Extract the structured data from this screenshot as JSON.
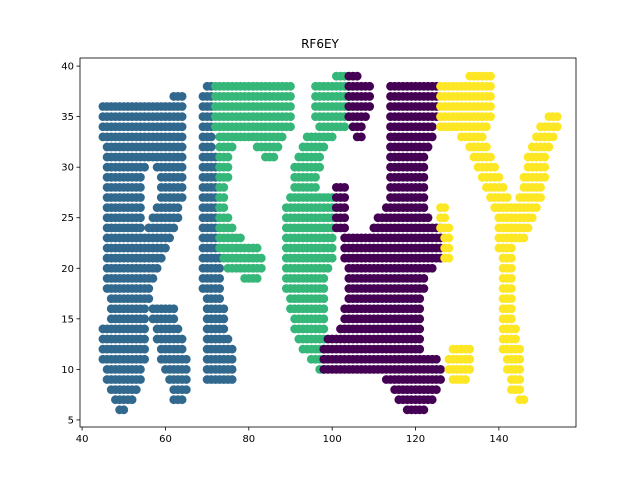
{
  "chart_data": {
    "type": "scatter",
    "title": "RF6EY",
    "xlabel": "",
    "ylabel": "",
    "xlim": [
      39.5,
      158.5
    ],
    "ylim": [
      4.3,
      40.8
    ],
    "xticks": [
      40,
      60,
      80,
      100,
      120,
      140
    ],
    "yticks": [
      5,
      10,
      15,
      20,
      25,
      30,
      35,
      40
    ],
    "grid": false,
    "legend": "none",
    "colors": {
      "blue": "#31688e",
      "green": "#35b779",
      "purple": "#440154",
      "yellow": "#fde725"
    },
    "series": [
      {
        "color": "#31688e",
        "segments": [
          [
            36,
            45,
            64
          ],
          [
            35,
            45,
            64
          ],
          [
            34,
            45,
            64
          ],
          [
            33,
            45,
            64
          ],
          [
            32,
            46,
            64
          ],
          [
            31,
            46,
            64
          ],
          [
            30,
            46,
            55
          ],
          [
            30,
            58,
            64
          ],
          [
            29,
            46,
            54
          ],
          [
            29,
            59,
            64
          ],
          [
            28,
            46,
            54
          ],
          [
            28,
            59,
            64
          ],
          [
            27,
            46,
            54
          ],
          [
            27,
            59,
            64
          ],
          [
            26,
            46,
            54
          ],
          [
            26,
            58,
            63
          ],
          [
            25,
            46,
            54
          ],
          [
            25,
            57,
            63
          ],
          [
            24,
            46,
            54
          ],
          [
            24,
            56,
            62
          ],
          [
            23,
            46,
            61
          ],
          [
            22,
            46,
            60
          ],
          [
            21,
            46,
            59
          ],
          [
            20,
            46,
            58
          ],
          [
            19,
            46,
            57
          ],
          [
            18,
            46,
            56
          ],
          [
            17,
            47,
            56
          ],
          [
            16,
            47,
            55
          ],
          [
            16,
            57,
            62
          ],
          [
            15,
            47,
            55
          ],
          [
            15,
            57,
            62
          ],
          [
            14,
            45,
            55
          ],
          [
            14,
            58,
            63
          ],
          [
            13,
            45,
            55
          ],
          [
            13,
            58,
            64
          ],
          [
            12,
            45,
            55
          ],
          [
            12,
            59,
            64
          ],
          [
            11,
            45,
            55
          ],
          [
            11,
            59,
            65
          ],
          [
            10,
            46,
            54
          ],
          [
            10,
            60,
            65
          ],
          [
            9,
            46,
            54
          ],
          [
            9,
            61,
            65
          ],
          [
            8,
            47,
            53
          ],
          [
            8,
            62,
            65
          ],
          [
            7,
            48,
            52
          ],
          [
            7,
            62,
            64
          ],
          [
            6,
            49,
            50
          ],
          [
            37,
            62,
            64
          ],
          [
            38,
            70,
            71
          ],
          [
            37,
            69,
            71
          ],
          [
            36,
            69,
            71
          ],
          [
            35,
            69,
            71
          ],
          [
            34,
            69,
            71
          ],
          [
            33,
            69,
            71
          ],
          [
            32,
            69,
            71
          ],
          [
            31,
            69,
            72
          ],
          [
            30,
            69,
            72
          ],
          [
            29,
            69,
            72
          ],
          [
            28,
            69,
            72
          ],
          [
            27,
            69,
            72
          ],
          [
            26,
            69,
            72
          ],
          [
            25,
            69,
            72
          ],
          [
            24,
            69,
            72
          ],
          [
            23,
            69,
            72
          ],
          [
            22,
            69,
            72
          ],
          [
            21,
            69,
            73
          ],
          [
            20,
            69,
            73
          ],
          [
            19,
            69,
            73
          ],
          [
            18,
            69,
            73
          ],
          [
            17,
            70,
            73
          ],
          [
            16,
            70,
            74
          ],
          [
            15,
            70,
            74
          ],
          [
            14,
            70,
            74
          ],
          [
            13,
            70,
            75
          ],
          [
            12,
            70,
            76
          ],
          [
            11,
            70,
            76
          ],
          [
            10,
            70,
            76
          ],
          [
            9,
            70,
            76
          ]
        ]
      },
      {
        "color": "#35b779",
        "segments": [
          [
            38,
            72,
            90
          ],
          [
            37,
            72,
            90
          ],
          [
            36,
            72,
            90
          ],
          [
            35,
            72,
            90
          ],
          [
            34,
            72,
            90
          ],
          [
            33,
            73,
            88
          ],
          [
            32,
            73,
            76
          ],
          [
            32,
            82,
            87
          ],
          [
            31,
            73,
            75
          ],
          [
            31,
            84,
            86
          ],
          [
            30,
            73,
            75
          ],
          [
            29,
            73,
            75
          ],
          [
            28,
            73,
            74
          ],
          [
            27,
            73,
            74
          ],
          [
            26,
            73,
            74
          ],
          [
            25,
            73,
            75
          ],
          [
            24,
            73,
            76
          ],
          [
            23,
            73,
            78
          ],
          [
            22,
            73,
            82
          ],
          [
            21,
            74,
            83
          ],
          [
            20,
            75,
            83
          ],
          [
            19,
            79,
            82
          ],
          [
            39,
            101,
            103
          ],
          [
            38,
            96,
            104
          ],
          [
            37,
            96,
            104
          ],
          [
            36,
            96,
            104
          ],
          [
            35,
            96,
            104
          ],
          [
            34,
            97,
            103
          ],
          [
            33,
            94,
            100
          ],
          [
            32,
            93,
            98
          ],
          [
            31,
            92,
            97
          ],
          [
            30,
            91,
            97
          ],
          [
            29,
            91,
            96
          ],
          [
            28,
            91,
            96
          ],
          [
            27,
            90,
            100
          ],
          [
            26,
            89,
            100
          ],
          [
            25,
            89,
            100
          ],
          [
            24,
            89,
            100
          ],
          [
            23,
            89,
            100
          ],
          [
            22,
            89,
            100
          ],
          [
            21,
            89,
            100
          ],
          [
            20,
            89,
            99
          ],
          [
            19,
            89,
            98
          ],
          [
            18,
            89,
            98
          ],
          [
            17,
            90,
            98
          ],
          [
            16,
            90,
            98
          ],
          [
            15,
            91,
            98
          ],
          [
            14,
            91,
            98
          ],
          [
            13,
            92,
            98
          ],
          [
            12,
            93,
            98
          ],
          [
            11,
            95,
            98
          ],
          [
            10,
            97,
            98
          ]
        ]
      },
      {
        "color": "#440154",
        "segments": [
          [
            39,
            104,
            106
          ],
          [
            38,
            104,
            109
          ],
          [
            37,
            104,
            109
          ],
          [
            36,
            104,
            109
          ],
          [
            35,
            104,
            108
          ],
          [
            34,
            105,
            107
          ],
          [
            33,
            106,
            107
          ],
          [
            38,
            114,
            125
          ],
          [
            37,
            114,
            125
          ],
          [
            36,
            114,
            125
          ],
          [
            35,
            114,
            125
          ],
          [
            34,
            114,
            124
          ],
          [
            33,
            114,
            124
          ],
          [
            32,
            114,
            123
          ],
          [
            31,
            114,
            122
          ],
          [
            30,
            114,
            122
          ],
          [
            29,
            114,
            122
          ],
          [
            28,
            114,
            122
          ],
          [
            27,
            114,
            122
          ],
          [
            26,
            113,
            122
          ],
          [
            25,
            111,
            123
          ],
          [
            24,
            110,
            126
          ],
          [
            23,
            103,
            126
          ],
          [
            22,
            103,
            126
          ],
          [
            21,
            103,
            126
          ],
          [
            20,
            104,
            124
          ],
          [
            19,
            104,
            122
          ],
          [
            18,
            104,
            122
          ],
          [
            17,
            104,
            121
          ],
          [
            16,
            103,
            121
          ],
          [
            15,
            103,
            121
          ],
          [
            14,
            102,
            121
          ],
          [
            13,
            99,
            121
          ],
          [
            12,
            98,
            121
          ],
          [
            11,
            98,
            125
          ],
          [
            10,
            98,
            126
          ],
          [
            9,
            113,
            126
          ],
          [
            8,
            115,
            125
          ],
          [
            7,
            116,
            124
          ],
          [
            6,
            118,
            122
          ],
          [
            28,
            101,
            103
          ],
          [
            27,
            101,
            103
          ],
          [
            26,
            101,
            103
          ],
          [
            25,
            101,
            103
          ],
          [
            24,
            101,
            103
          ]
        ]
      },
      {
        "color": "#fde725",
        "segments": [
          [
            39,
            133,
            138
          ],
          [
            38,
            126,
            138
          ],
          [
            37,
            126,
            138
          ],
          [
            36,
            126,
            138
          ],
          [
            35,
            126,
            138
          ],
          [
            34,
            126,
            137
          ],
          [
            33,
            131,
            136
          ],
          [
            32,
            133,
            137
          ],
          [
            31,
            134,
            138
          ],
          [
            30,
            135,
            139
          ],
          [
            29,
            136,
            140
          ],
          [
            28,
            137,
            141
          ],
          [
            27,
            138,
            142
          ],
          [
            26,
            139,
            143
          ],
          [
            25,
            140,
            143
          ],
          [
            24,
            140,
            143
          ],
          [
            23,
            140,
            144
          ],
          [
            22,
            140,
            143
          ],
          [
            21,
            141,
            143
          ],
          [
            20,
            141,
            143
          ],
          [
            19,
            141,
            143
          ],
          [
            18,
            141,
            143
          ],
          [
            17,
            141,
            143
          ],
          [
            16,
            141,
            143
          ],
          [
            15,
            141,
            143
          ],
          [
            14,
            141,
            144
          ],
          [
            13,
            141,
            144
          ],
          [
            12,
            141,
            145
          ],
          [
            11,
            142,
            145
          ],
          [
            10,
            142,
            145
          ],
          [
            9,
            143,
            145
          ],
          [
            8,
            143,
            145
          ],
          [
            7,
            145,
            146
          ],
          [
            35,
            152,
            154
          ],
          [
            34,
            150,
            154
          ],
          [
            33,
            149,
            153
          ],
          [
            32,
            148,
            152
          ],
          [
            31,
            147,
            151
          ],
          [
            30,
            147,
            151
          ],
          [
            29,
            146,
            151
          ],
          [
            28,
            146,
            150
          ],
          [
            27,
            145,
            150
          ],
          [
            26,
            144,
            149
          ],
          [
            25,
            144,
            148
          ],
          [
            24,
            143,
            147
          ],
          [
            23,
            143,
            146
          ],
          [
            25,
            126,
            127
          ],
          [
            24,
            126,
            128
          ],
          [
            23,
            127,
            128
          ],
          [
            22,
            127,
            128
          ],
          [
            21,
            127,
            128
          ],
          [
            26,
            126,
            127
          ],
          [
            12,
            129,
            133
          ],
          [
            11,
            128,
            133
          ],
          [
            10,
            128,
            133
          ],
          [
            9,
            129,
            132
          ]
        ]
      }
    ]
  }
}
